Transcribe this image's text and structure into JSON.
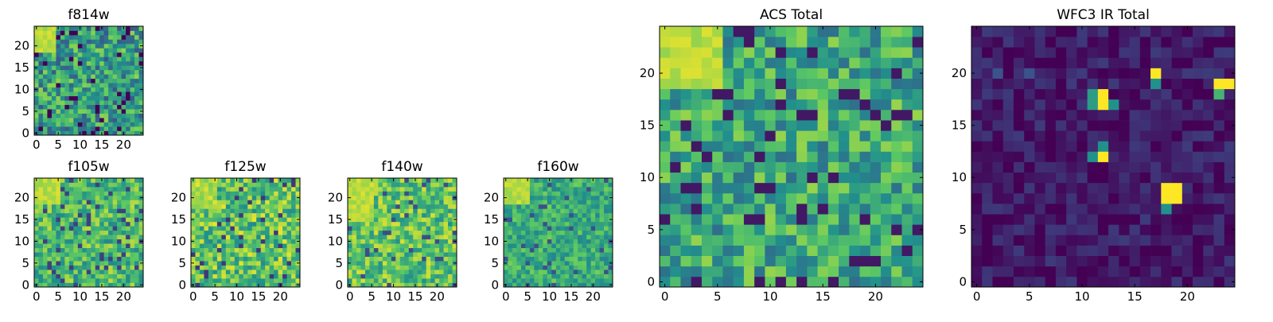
{
  "figure": {
    "background": "#ffffff",
    "colormap": "viridis",
    "colormap_stops": [
      "#440154",
      "#3b528b",
      "#21918c",
      "#5ec962",
      "#fde725"
    ]
  },
  "chart_data": [
    {
      "type": "heatmap",
      "title": "f814w",
      "grid_size": 25,
      "xticks": [
        0,
        5,
        10,
        15,
        20
      ],
      "yticks": [
        0,
        5,
        10,
        15,
        20
      ],
      "xlim": [
        -0.5,
        24.5
      ],
      "ylim": [
        -0.5,
        24.5
      ],
      "bright_region": {
        "x_range": [
          0,
          4
        ],
        "y_range": [
          19,
          24
        ],
        "level": 0.95
      },
      "base_level": 0.55,
      "noise": 0.28,
      "seed": 11
    },
    {
      "type": "heatmap",
      "title": "f105w",
      "grid_size": 25,
      "xticks": [
        0,
        5,
        10,
        15,
        20
      ],
      "yticks": [
        0,
        5,
        10,
        15,
        20
      ],
      "xlim": [
        -0.5,
        24.5
      ],
      "ylim": [
        -0.5,
        24.5
      ],
      "bright_region": {
        "x_range": [
          0,
          5
        ],
        "y_range": [
          19,
          24
        ],
        "level": 0.95
      },
      "base_level": 0.68,
      "noise": 0.22,
      "seed": 23
    },
    {
      "type": "heatmap",
      "title": "f125w",
      "grid_size": 25,
      "xticks": [
        0,
        5,
        10,
        15,
        20
      ],
      "yticks": [
        0,
        5,
        10,
        15,
        20
      ],
      "xlim": [
        -0.5,
        24.5
      ],
      "ylim": [
        -0.5,
        24.5
      ],
      "bright_region": {
        "x_range": [
          0,
          5
        ],
        "y_range": [
          18,
          24
        ],
        "level": 0.9
      },
      "base_level": 0.72,
      "noise": 0.25,
      "seed": 37
    },
    {
      "type": "heatmap",
      "title": "f140w",
      "grid_size": 25,
      "xticks": [
        0,
        5,
        10,
        15,
        20
      ],
      "yticks": [
        0,
        5,
        10,
        15,
        20
      ],
      "xlim": [
        -0.5,
        24.5
      ],
      "ylim": [
        -0.5,
        24.5
      ],
      "bright_region": {
        "x_range": [
          0,
          5
        ],
        "y_range": [
          15,
          24
        ],
        "level": 0.95
      },
      "base_level": 0.72,
      "noise": 0.22,
      "seed": 41
    },
    {
      "type": "heatmap",
      "title": "f160w",
      "grid_size": 25,
      "xticks": [
        0,
        5,
        10,
        15,
        20
      ],
      "yticks": [
        0,
        5,
        10,
        15,
        20
      ],
      "xlim": [
        -0.5,
        24.5
      ],
      "ylim": [
        -0.5,
        24.5
      ],
      "bright_region": {
        "x_range": [
          0,
          5
        ],
        "y_range": [
          19,
          24
        ],
        "level": 0.95
      },
      "base_level": 0.62,
      "noise": 0.17,
      "seed": 53
    },
    {
      "type": "heatmap",
      "title": "ACS Total",
      "grid_size": 25,
      "xticks": [
        0,
        5,
        10,
        15,
        20
      ],
      "yticks": [
        0,
        5,
        10,
        15,
        20
      ],
      "xlim": [
        -0.5,
        24.5
      ],
      "ylim": [
        -0.5,
        24.5
      ],
      "bright_region": {
        "x_range": [
          0,
          5
        ],
        "y_range": [
          19,
          24
        ],
        "level": 0.95
      },
      "base_level": 0.6,
      "noise": 0.24,
      "seed": 67
    },
    {
      "type": "heatmap",
      "title": "WFC3 IR Total",
      "grid_size": 25,
      "xticks": [
        0,
        5,
        10,
        15,
        20
      ],
      "yticks": [
        0,
        5,
        10,
        15,
        20
      ],
      "xlim": [
        -0.5,
        24.5
      ],
      "ylim": [
        -0.5,
        24.5
      ],
      "base_level": 0.08,
      "noise": 0.1,
      "seed": 79,
      "hot_pixels": [
        {
          "x": 18,
          "y": 8,
          "w": 2,
          "h": 2,
          "value": 1.0
        },
        {
          "x": 18,
          "y": 7,
          "w": 1,
          "h": 1,
          "value": 0.5
        },
        {
          "x": 12,
          "y": 12,
          "w": 1,
          "h": 1,
          "value": 1.0
        },
        {
          "x": 11,
          "y": 12,
          "w": 1,
          "h": 1,
          "value": 0.5
        },
        {
          "x": 12,
          "y": 13,
          "w": 1,
          "h": 1,
          "value": 0.5
        },
        {
          "x": 12,
          "y": 17,
          "w": 1,
          "h": 2,
          "value": 1.0
        },
        {
          "x": 11,
          "y": 17,
          "w": 1,
          "h": 2,
          "value": 0.55
        },
        {
          "x": 13,
          "y": 17,
          "w": 1,
          "h": 1,
          "value": 0.5
        },
        {
          "x": 17,
          "y": 20,
          "w": 1,
          "h": 1,
          "value": 1.0
        },
        {
          "x": 17,
          "y": 19,
          "w": 1,
          "h": 1,
          "value": 0.5
        },
        {
          "x": 23,
          "y": 19,
          "w": 2,
          "h": 1,
          "value": 1.0
        },
        {
          "x": 23,
          "y": 18,
          "w": 1,
          "h": 1,
          "value": 0.65
        },
        {
          "x": 2,
          "y": 20,
          "w": 1,
          "h": 1,
          "value": 0.25
        },
        {
          "x": 5,
          "y": 20,
          "w": 1,
          "h": 1,
          "value": 0.25
        }
      ]
    }
  ]
}
